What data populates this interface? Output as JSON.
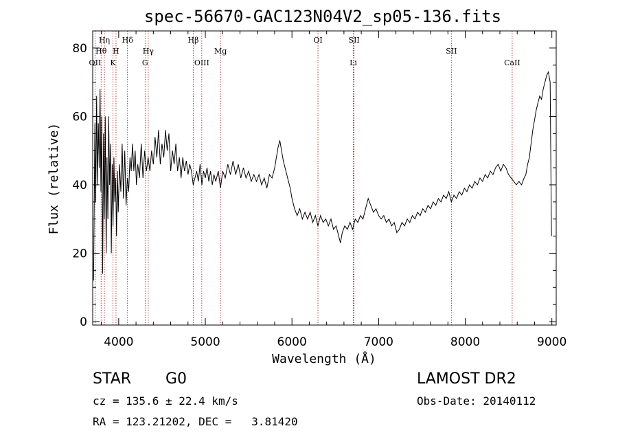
{
  "chart_data": {
    "type": "line",
    "title": "spec-56670-GAC123N04V2_sp05-136.fits",
    "xlabel": "Wavelength (Å)",
    "ylabel": "Flux (relative)",
    "xlim": [
      3700,
      9050
    ],
    "ylim": [
      -1,
      85
    ],
    "xticks": [
      4000,
      5000,
      6000,
      7000,
      8000,
      9000
    ],
    "yticks": [
      0,
      20,
      40,
      60,
      80
    ],
    "grid": false,
    "line_color": "#000000",
    "marker_color": "#c00000",
    "lines": [
      {
        "label": "OII",
        "x": 3727,
        "row": 3
      },
      {
        "label": "Hθ",
        "x": 3797,
        "row": 2
      },
      {
        "label": "Hη",
        "x": 3835,
        "row": 1
      },
      {
        "label": "K",
        "x": 3934,
        "row": 3
      },
      {
        "label": "H",
        "x": 3969,
        "row": 2
      },
      {
        "label": "Hδ",
        "x": 4102,
        "row": 1
      },
      {
        "label": "G",
        "x": 4305,
        "row": 3
      },
      {
        "label": "Hγ",
        "x": 4341,
        "row": 2
      },
      {
        "label": "Hβ",
        "x": 4861,
        "row": 1
      },
      {
        "label": "OIII",
        "x": 4959,
        "row": 3
      },
      {
        "label": "Mg",
        "x": 5175,
        "row": 2
      },
      {
        "label": "OI",
        "x": 6300,
        "row": 1
      },
      {
        "label": "SII",
        "x": 6717,
        "row": 1
      },
      {
        "label": "Li",
        "x": 6708,
        "row": 3
      },
      {
        "label": "SII",
        "x": 7840,
        "row": 2
      },
      {
        "label": "CaII",
        "x": 8542,
        "row": 3
      }
    ],
    "spectrum": [
      [
        3710,
        12
      ],
      [
        3725,
        58
      ],
      [
        3735,
        35
      ],
      [
        3745,
        66
      ],
      [
        3755,
        40
      ],
      [
        3765,
        58
      ],
      [
        3775,
        45
      ],
      [
        3785,
        68
      ],
      [
        3795,
        38
      ],
      [
        3805,
        60
      ],
      [
        3815,
        14
      ],
      [
        3825,
        55
      ],
      [
        3835,
        30
      ],
      [
        3845,
        60
      ],
      [
        3855,
        20
      ],
      [
        3865,
        48
      ],
      [
        3875,
        30
      ],
      [
        3885,
        60
      ],
      [
        3895,
        40
      ],
      [
        3905,
        52
      ],
      [
        3915,
        20
      ],
      [
        3925,
        46
      ],
      [
        3935,
        28
      ],
      [
        3945,
        48
      ],
      [
        3955,
        35
      ],
      [
        3965,
        42
      ],
      [
        3975,
        25
      ],
      [
        3985,
        44
      ],
      [
        3995,
        32
      ],
      [
        4010,
        46
      ],
      [
        4025,
        38
      ],
      [
        4040,
        52
      ],
      [
        4055,
        36
      ],
      [
        4070,
        50
      ],
      [
        4085,
        34
      ],
      [
        4100,
        42
      ],
      [
        4115,
        38
      ],
      [
        4130,
        48
      ],
      [
        4145,
        44
      ],
      [
        4160,
        52
      ],
      [
        4175,
        44
      ],
      [
        4190,
        50
      ],
      [
        4205,
        40
      ],
      [
        4220,
        46
      ],
      [
        4240,
        42
      ],
      [
        4260,
        52
      ],
      [
        4280,
        42
      ],
      [
        4300,
        50
      ],
      [
        4320,
        44
      ],
      [
        4340,
        48
      ],
      [
        4360,
        44
      ],
      [
        4380,
        50
      ],
      [
        4400,
        46
      ],
      [
        4420,
        54
      ],
      [
        4440,
        48
      ],
      [
        4460,
        56
      ],
      [
        4480,
        46
      ],
      [
        4500,
        52
      ],
      [
        4520,
        48
      ],
      [
        4540,
        56
      ],
      [
        4560,
        50
      ],
      [
        4580,
        55
      ],
      [
        4600,
        44
      ],
      [
        4620,
        50
      ],
      [
        4640,
        46
      ],
      [
        4660,
        52
      ],
      [
        4680,
        44
      ],
      [
        4700,
        48
      ],
      [
        4720,
        42
      ],
      [
        4740,
        48
      ],
      [
        4760,
        44
      ],
      [
        4780,
        47
      ],
      [
        4800,
        43
      ],
      [
        4820,
        46
      ],
      [
        4840,
        44
      ],
      [
        4860,
        40
      ],
      [
        4880,
        42
      ],
      [
        4900,
        44
      ],
      [
        4920,
        41
      ],
      [
        4940,
        46
      ],
      [
        4960,
        40
      ],
      [
        4980,
        44
      ],
      [
        5000,
        42
      ],
      [
        5020,
        45
      ],
      [
        5040,
        41
      ],
      [
        5060,
        44
      ],
      [
        5080,
        40
      ],
      [
        5100,
        43
      ],
      [
        5120,
        41
      ],
      [
        5150,
        44
      ],
      [
        5175,
        39
      ],
      [
        5200,
        44
      ],
      [
        5230,
        42
      ],
      [
        5260,
        46
      ],
      [
        5290,
        43
      ],
      [
        5320,
        47
      ],
      [
        5350,
        43
      ],
      [
        5380,
        46
      ],
      [
        5410,
        42
      ],
      [
        5440,
        45
      ],
      [
        5470,
        42
      ],
      [
        5500,
        44
      ],
      [
        5530,
        41
      ],
      [
        5560,
        43
      ],
      [
        5590,
        41
      ],
      [
        5620,
        43
      ],
      [
        5650,
        40
      ],
      [
        5680,
        42
      ],
      [
        5710,
        39
      ],
      [
        5740,
        43
      ],
      [
        5770,
        42
      ],
      [
        5800,
        45
      ],
      [
        5820,
        48
      ],
      [
        5840,
        51
      ],
      [
        5860,
        53
      ],
      [
        5880,
        50
      ],
      [
        5900,
        47
      ],
      [
        5920,
        45
      ],
      [
        5940,
        43
      ],
      [
        5960,
        41
      ],
      [
        5980,
        39
      ],
      [
        6000,
        36
      ],
      [
        6030,
        33
      ],
      [
        6060,
        31
      ],
      [
        6090,
        33
      ],
      [
        6120,
        30
      ],
      [
        6150,
        32
      ],
      [
        6180,
        30
      ],
      [
        6210,
        32
      ],
      [
        6240,
        29
      ],
      [
        6270,
        31
      ],
      [
        6300,
        28
      ],
      [
        6330,
        31
      ],
      [
        6360,
        29
      ],
      [
        6390,
        30
      ],
      [
        6420,
        28
      ],
      [
        6450,
        30
      ],
      [
        6480,
        27
      ],
      [
        6510,
        28
      ],
      [
        6540,
        25
      ],
      [
        6560,
        23
      ],
      [
        6580,
        26
      ],
      [
        6610,
        28
      ],
      [
        6640,
        27
      ],
      [
        6670,
        29
      ],
      [
        6700,
        27
      ],
      [
        6730,
        30
      ],
      [
        6760,
        29
      ],
      [
        6790,
        31
      ],
      [
        6820,
        30
      ],
      [
        6850,
        33
      ],
      [
        6880,
        36
      ],
      [
        6910,
        34
      ],
      [
        6940,
        32
      ],
      [
        6970,
        33
      ],
      [
        7000,
        31
      ],
      [
        7030,
        30
      ],
      [
        7060,
        31
      ],
      [
        7090,
        29
      ],
      [
        7120,
        30
      ],
      [
        7150,
        28
      ],
      [
        7180,
        29
      ],
      [
        7210,
        26
      ],
      [
        7240,
        27
      ],
      [
        7270,
        29
      ],
      [
        7300,
        28
      ],
      [
        7330,
        30
      ],
      [
        7360,
        29
      ],
      [
        7390,
        31
      ],
      [
        7420,
        30
      ],
      [
        7450,
        32
      ],
      [
        7480,
        31
      ],
      [
        7510,
        33
      ],
      [
        7540,
        32
      ],
      [
        7570,
        34
      ],
      [
        7600,
        33
      ],
      [
        7630,
        35
      ],
      [
        7660,
        34
      ],
      [
        7690,
        36
      ],
      [
        7720,
        35
      ],
      [
        7750,
        37
      ],
      [
        7780,
        36
      ],
      [
        7810,
        38
      ],
      [
        7840,
        35
      ],
      [
        7870,
        37
      ],
      [
        7900,
        36
      ],
      [
        7930,
        38
      ],
      [
        7960,
        37
      ],
      [
        7990,
        39
      ],
      [
        8020,
        38
      ],
      [
        8050,
        40
      ],
      [
        8080,
        39
      ],
      [
        8110,
        41
      ],
      [
        8140,
        40
      ],
      [
        8170,
        42
      ],
      [
        8200,
        41
      ],
      [
        8230,
        43
      ],
      [
        8260,
        42
      ],
      [
        8290,
        44
      ],
      [
        8320,
        43
      ],
      [
        8350,
        45
      ],
      [
        8380,
        46
      ],
      [
        8410,
        44
      ],
      [
        8440,
        46
      ],
      [
        8470,
        45
      ],
      [
        8500,
        43
      ],
      [
        8530,
        42
      ],
      [
        8560,
        41
      ],
      [
        8590,
        40
      ],
      [
        8620,
        41
      ],
      [
        8650,
        40
      ],
      [
        8680,
        42
      ],
      [
        8700,
        43
      ],
      [
        8720,
        46
      ],
      [
        8740,
        48
      ],
      [
        8760,
        52
      ],
      [
        8780,
        56
      ],
      [
        8800,
        59
      ],
      [
        8820,
        62
      ],
      [
        8840,
        64
      ],
      [
        8860,
        66
      ],
      [
        8880,
        65
      ],
      [
        8900,
        68
      ],
      [
        8920,
        70
      ],
      [
        8940,
        72
      ],
      [
        8960,
        73
      ],
      [
        8980,
        70
      ],
      [
        8995,
        25
      ]
    ]
  },
  "info": {
    "object_type": "STAR",
    "subclass": "G0",
    "survey": "LAMOST DR2",
    "cz": "cz = 135.6 ± 22.4 km/s",
    "obs_date": "Obs-Date: 20140112",
    "coords": "RA = 123.21202, DEC =   3.81420"
  }
}
